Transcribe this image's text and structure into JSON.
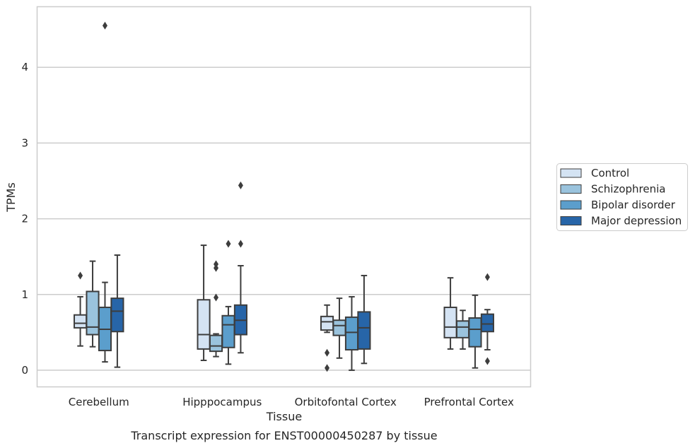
{
  "caption": "Transcript expression for ENST00000450287 by tissue",
  "chart_data": {
    "type": "boxplot",
    "xlabel": "Tissue",
    "ylabel": "TPMs",
    "ylim": [
      -0.22,
      4.8
    ],
    "yticks": [
      0,
      1,
      2,
      3,
      4
    ],
    "grid": "horizontal",
    "legend_position": "right",
    "categories": [
      "Cerebellum",
      "Hipppocampus",
      "Orbitofontal Cortex",
      "Prefrontal Cortex"
    ],
    "series": [
      {
        "name": "Control",
        "color": "#d4e3f3",
        "boxes": [
          {
            "whislo": 0.32,
            "q1": 0.56,
            "med": 0.62,
            "q3": 0.73,
            "whishi": 0.97,
            "fliers": [
              1.25
            ]
          },
          {
            "whislo": 0.13,
            "q1": 0.28,
            "med": 0.47,
            "q3": 0.93,
            "whishi": 1.65,
            "fliers": []
          },
          {
            "whislo": 0.5,
            "q1": 0.53,
            "med": 0.64,
            "q3": 0.71,
            "whishi": 0.86,
            "fliers": [
              0.23,
              0.03
            ]
          },
          {
            "whislo": 0.28,
            "q1": 0.43,
            "med": 0.57,
            "q3": 0.83,
            "whishi": 1.22,
            "fliers": []
          }
        ]
      },
      {
        "name": "Schizophrenia",
        "color": "#9ac3dd",
        "boxes": [
          {
            "whislo": 0.31,
            "q1": 0.47,
            "med": 0.57,
            "q3": 1.04,
            "whishi": 1.44,
            "fliers": []
          },
          {
            "whislo": 0.18,
            "q1": 0.25,
            "med": 0.32,
            "q3": 0.46,
            "whishi": 0.48,
            "fliers": [
              0.96,
              1.35,
              1.4
            ]
          },
          {
            "whislo": 0.16,
            "q1": 0.46,
            "med": 0.59,
            "q3": 0.66,
            "whishi": 0.95,
            "fliers": []
          },
          {
            "whislo": 0.28,
            "q1": 0.43,
            "med": 0.57,
            "q3": 0.65,
            "whishi": 0.79,
            "fliers": []
          }
        ]
      },
      {
        "name": "Bipolar disorder",
        "color": "#5b9ecc",
        "boxes": [
          {
            "whislo": 0.11,
            "q1": 0.26,
            "med": 0.54,
            "q3": 0.83,
            "whishi": 1.16,
            "fliers": [
              4.55
            ]
          },
          {
            "whislo": 0.08,
            "q1": 0.3,
            "med": 0.6,
            "q3": 0.72,
            "whishi": 0.84,
            "fliers": [
              1.67
            ]
          },
          {
            "whislo": 0.0,
            "q1": 0.27,
            "med": 0.5,
            "q3": 0.7,
            "whishi": 0.97,
            "fliers": []
          },
          {
            "whislo": 0.03,
            "q1": 0.31,
            "med": 0.54,
            "q3": 0.69,
            "whishi": 0.99,
            "fliers": []
          }
        ]
      },
      {
        "name": "Major depression",
        "color": "#2765a8",
        "boxes": [
          {
            "whislo": 0.04,
            "q1": 0.51,
            "med": 0.78,
            "q3": 0.95,
            "whishi": 1.52,
            "fliers": []
          },
          {
            "whislo": 0.23,
            "q1": 0.47,
            "med": 0.66,
            "q3": 0.86,
            "whishi": 1.38,
            "fliers": [
              1.67,
              2.44
            ]
          },
          {
            "whislo": 0.09,
            "q1": 0.28,
            "med": 0.56,
            "q3": 0.77,
            "whishi": 1.25,
            "fliers": []
          },
          {
            "whislo": 0.27,
            "q1": 0.51,
            "med": 0.61,
            "q3": 0.74,
            "whishi": 0.8,
            "fliers": [
              1.23,
              0.12
            ]
          }
        ]
      }
    ]
  }
}
